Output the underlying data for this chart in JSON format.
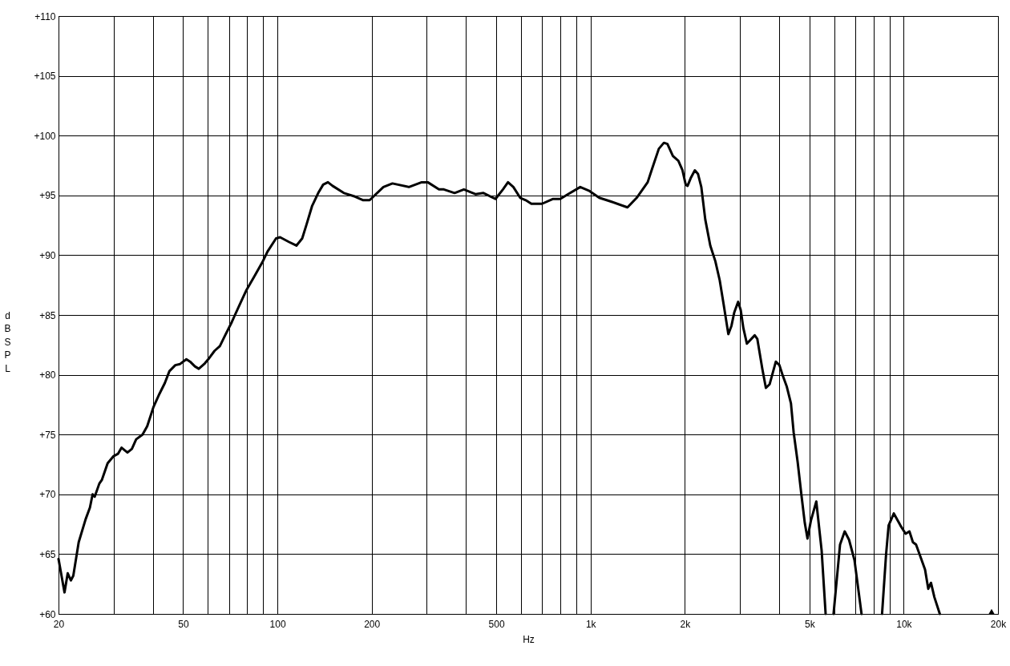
{
  "chart_data": {
    "type": "line",
    "xlabel": "Hz",
    "ylabel": "dB SPL",
    "log": "x",
    "grid": true,
    "xlim": [
      20,
      20000
    ],
    "ylim": [
      60,
      110
    ],
    "xticks": [
      20,
      {
        "value": 30,
        "label": null
      },
      {
        "value": 40,
        "label": null
      },
      50,
      {
        "value": 60,
        "label": null
      },
      {
        "value": 70,
        "label": null
      },
      {
        "value": 80,
        "label": null
      },
      {
        "value": 90,
        "label": null
      },
      100,
      200,
      {
        "value": 300,
        "label": null
      },
      {
        "value": 400,
        "label": null
      },
      500,
      {
        "value": 600,
        "label": null
      },
      {
        "value": 700,
        "label": null
      },
      {
        "value": 800,
        "label": null
      },
      {
        "value": 900,
        "label": null
      },
      {
        "value": 1000,
        "label": "1k"
      },
      {
        "value": 2000,
        "label": "2k"
      },
      {
        "value": 3000,
        "label": null
      },
      {
        "value": 4000,
        "label": null
      },
      {
        "value": 5000,
        "label": "5k"
      },
      {
        "value": 6000,
        "label": null
      },
      {
        "value": 7000,
        "label": null
      },
      {
        "value": 8000,
        "label": null
      },
      {
        "value": 9000,
        "label": null
      },
      {
        "value": 10000,
        "label": "10k"
      },
      {
        "value": 20000,
        "label": "20k"
      }
    ],
    "yticks": [
      {
        "value": 60,
        "label": "+60"
      },
      {
        "value": 65,
        "label": "+65"
      },
      {
        "value": 70,
        "label": "+70"
      },
      {
        "value": 75,
        "label": "+75"
      },
      {
        "value": 80,
        "label": "+80"
      },
      {
        "value": 85,
        "label": "+85"
      },
      {
        "value": 90,
        "label": "+90"
      },
      {
        "value": 95,
        "label": "+95"
      },
      {
        "value": 100,
        "label": "+100"
      },
      {
        "value": 105,
        "label": "+105"
      },
      {
        "value": 110,
        "label": "+110"
      }
    ],
    "x": [
      20,
      20.9,
      21.4,
      21.9,
      22.3,
      23.2,
      24.4,
      25.2,
      25.7,
      26.1,
      27.0,
      27.5,
      28.7,
      30.0,
      31.0,
      31.8,
      33.2,
      34.3,
      35.4,
      37.1,
      38.4,
      40.2,
      42.0,
      43.7,
      45.2,
      47.2,
      48.9,
      51.2,
      52.6,
      54.5,
      56.1,
      58.4,
      60.6,
      63.0,
      65.5,
      68.1,
      71.5,
      72.9,
      76.5,
      79.7,
      84.3,
      89.5,
      93.0,
      99.0,
      102,
      109,
      115,
      120,
      124,
      129,
      135,
      140,
      145,
      150,
      163,
      177,
      188,
      197,
      218,
      233,
      263,
      289,
      302,
      328,
      340,
      368,
      394,
      430,
      455,
      497,
      525,
      545,
      567,
      596,
      621,
      647,
      700,
      757,
      800,
      848,
      927,
      987,
      1066,
      1157,
      1312,
      1404,
      1522,
      1571,
      1652,
      1715,
      1760,
      1832,
      1907,
      1966,
      2013,
      2041,
      2093,
      2153,
      2203,
      2258,
      2324,
      2412,
      2503,
      2585,
      2660,
      2754,
      2819,
      2876,
      2960,
      3017,
      3076,
      3157,
      3344,
      3408,
      3536,
      3630,
      3730,
      3906,
      4010,
      4113,
      4234,
      4365,
      4451,
      4585,
      4721,
      4832,
      4929,
      5054,
      5259,
      5469,
      5632,
      5800,
      5970,
      6262,
      6480,
      6690,
      6963,
      7334,
      7900,
      8528,
      8780,
      8950,
      9300,
      9760,
      10140,
      10430,
      10700,
      10950,
      11270,
      11700,
      11980,
      12220,
      12530,
      13040
    ],
    "series": [
      {
        "color": "#000000",
        "values": [
          64.6,
          61.8,
          63.4,
          62.8,
          63.2,
          66.0,
          67.9,
          68.9,
          70.0,
          69.8,
          70.9,
          71.2,
          72.6,
          73.2,
          73.4,
          73.9,
          73.5,
          73.8,
          74.6,
          75.0,
          75.7,
          77.3,
          78.4,
          79.3,
          80.3,
          80.8,
          80.9,
          81.3,
          81.1,
          80.7,
          80.5,
          80.9,
          81.4,
          82.0,
          82.4,
          83.3,
          84.4,
          84.9,
          86.1,
          87.1,
          88.2,
          89.4,
          90.3,
          91.4,
          91.5,
          91.1,
          90.8,
          91.4,
          92.6,
          94.1,
          95.2,
          95.9,
          96.1,
          95.8,
          95.2,
          94.9,
          94.6,
          94.6,
          95.7,
          96.0,
          95.7,
          96.1,
          96.1,
          95.5,
          95.5,
          95.2,
          95.5,
          95.1,
          95.2,
          94.7,
          95.5,
          96.1,
          95.7,
          94.8,
          94.6,
          94.3,
          94.3,
          94.7,
          94.7,
          95.1,
          95.7,
          95.4,
          94.8,
          94.5,
          94.0,
          94.8,
          96.1,
          97.2,
          98.9,
          99.4,
          99.3,
          98.3,
          97.9,
          97.1,
          95.9,
          95.8,
          96.5,
          97.1,
          96.8,
          95.7,
          93.0,
          90.8,
          89.5,
          87.9,
          85.9,
          83.4,
          84.1,
          85.2,
          86.1,
          85.4,
          83.9,
          82.6,
          83.3,
          83.0,
          80.5,
          78.9,
          79.2,
          81.1,
          80.8,
          79.9,
          79.0,
          77.6,
          75.2,
          72.7,
          69.8,
          67.6,
          66.3,
          67.8,
          69.4,
          65.3,
          60,
          null,
          60,
          65.8,
          66.9,
          66.2,
          64.5,
          60,
          null,
          60,
          64.9,
          67.4,
          68.4,
          67.4,
          66.7,
          66.9,
          66.0,
          65.8,
          64.9,
          63.7,
          62.1,
          62.6,
          61.4,
          60
        ]
      },
      {
        "type": "scatter",
        "marker": "triangle",
        "color": "#000000",
        "x": [
          19080
        ],
        "values": [
          60.2
        ]
      }
    ]
  }
}
